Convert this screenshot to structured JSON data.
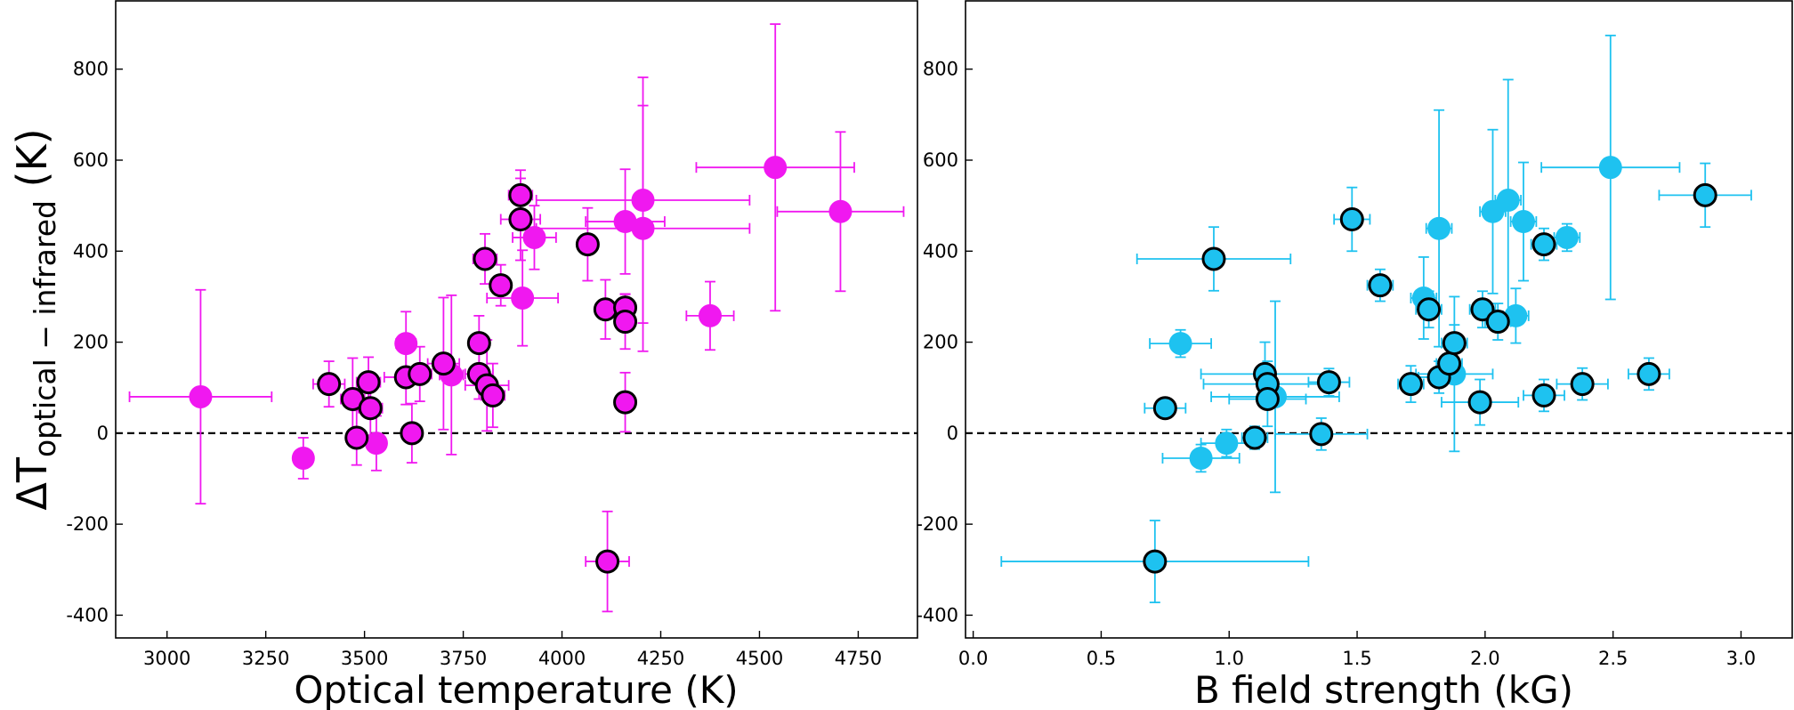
{
  "chart_data": [
    {
      "type": "scatter",
      "title": "",
      "xlabel": "Optical temperature (K)",
      "ylabel_main": "ΔT",
      "ylabel_sub": "optical − infrared",
      "ylabel_unit": " (K)",
      "xlim": [
        2870,
        4900
      ],
      "ylim": [
        -450,
        950
      ],
      "xticks": [
        3000,
        3250,
        3500,
        3750,
        4000,
        4250,
        4500,
        4750
      ],
      "yticks": [
        -400,
        -200,
        0,
        200,
        400,
        600,
        800
      ],
      "reference_line": 0,
      "color": "#f018f0",
      "points": [
        {
          "x": 3085,
          "y": 80,
          "xerr": 180,
          "yerr": 235,
          "outlined": false
        },
        {
          "x": 3345,
          "y": -55,
          "xerr": 15,
          "yerr": 45,
          "outlined": false
        },
        {
          "x": 3410,
          "y": 108,
          "xerr": 40,
          "yerr": 50,
          "outlined": true
        },
        {
          "x": 3470,
          "y": 75,
          "xerr": 30,
          "yerr": 90,
          "outlined": true
        },
        {
          "x": 3480,
          "y": -10,
          "xerr": 25,
          "yerr": 60,
          "outlined": true
        },
        {
          "x": 3510,
          "y": 112,
          "xerr": 30,
          "yerr": 55,
          "outlined": true
        },
        {
          "x": 3515,
          "y": 55,
          "xerr": 30,
          "yerr": 60,
          "outlined": true
        },
        {
          "x": 3530,
          "y": -22,
          "xerr": 15,
          "yerr": 60,
          "outlined": false
        },
        {
          "x": 3605,
          "y": 197,
          "xerr": 25,
          "yerr": 70,
          "outlined": false
        },
        {
          "x": 3605,
          "y": 123,
          "xerr": 55,
          "yerr": 60,
          "outlined": true
        },
        {
          "x": 3620,
          "y": 0,
          "xerr": 25,
          "yerr": 65,
          "outlined": true
        },
        {
          "x": 3640,
          "y": 130,
          "xerr": 30,
          "yerr": 60,
          "outlined": true
        },
        {
          "x": 3700,
          "y": 153,
          "xerr": 40,
          "yerr": 145,
          "outlined": true
        },
        {
          "x": 3720,
          "y": 128,
          "xerr": 30,
          "yerr": 175,
          "outlined": false
        },
        {
          "x": 3790,
          "y": 198,
          "xerr": 20,
          "yerr": 60,
          "outlined": true
        },
        {
          "x": 3790,
          "y": 130,
          "xerr": 35,
          "yerr": 55,
          "outlined": true
        },
        {
          "x": 3805,
          "y": 383,
          "xerr": 30,
          "yerr": 55,
          "outlined": true
        },
        {
          "x": 3810,
          "y": 105,
          "xerr": 55,
          "yerr": 100,
          "outlined": true
        },
        {
          "x": 3825,
          "y": 83,
          "xerr": 30,
          "yerr": 70,
          "outlined": true
        },
        {
          "x": 3845,
          "y": 325,
          "xerr": 25,
          "yerr": 45,
          "outlined": true
        },
        {
          "x": 3895,
          "y": 523,
          "xerr": 30,
          "yerr": 55,
          "outlined": true
        },
        {
          "x": 3895,
          "y": 470,
          "xerr": 50,
          "yerr": 90,
          "outlined": true
        },
        {
          "x": 3900,
          "y": 297,
          "xerr": 90,
          "yerr": 105,
          "outlined": false
        },
        {
          "x": 3930,
          "y": 430,
          "xerr": 55,
          "yerr": 70,
          "outlined": false
        },
        {
          "x": 4065,
          "y": 415,
          "xerr": 20,
          "yerr": 80,
          "outlined": true
        },
        {
          "x": 4110,
          "y": 272,
          "xerr": 25,
          "yerr": 65,
          "outlined": true
        },
        {
          "x": 4115,
          "y": -282,
          "xerr": 55,
          "yerr": 110,
          "outlined": true
        },
        {
          "x": 4160,
          "y": 465,
          "xerr": 100,
          "yerr": 115,
          "outlined": false
        },
        {
          "x": 4160,
          "y": 276,
          "xerr": 20,
          "yerr": 30,
          "outlined": true
        },
        {
          "x": 4160,
          "y": 245,
          "xerr": 20,
          "yerr": 60,
          "outlined": true
        },
        {
          "x": 4160,
          "y": 68,
          "xerr": 20,
          "yerr": 65,
          "outlined": true
        },
        {
          "x": 4205,
          "y": 512,
          "xerr": 270,
          "yerr": 270,
          "outlined": false
        },
        {
          "x": 4205,
          "y": 450,
          "xerr": 270,
          "yerr": 270,
          "outlined": false
        },
        {
          "x": 4375,
          "y": 258,
          "xerr": 60,
          "yerr": 75,
          "outlined": false
        },
        {
          "x": 4540,
          "y": 584,
          "xerr": 200,
          "yerr": 315,
          "outlined": false
        },
        {
          "x": 4705,
          "y": 487,
          "xerr": 160,
          "yerr": 175,
          "outlined": false
        }
      ]
    },
    {
      "type": "scatter",
      "title": "",
      "xlabel": "B field strength (kG)",
      "ylabel": "",
      "xlim": [
        -0.03,
        3.2
      ],
      "ylim": [
        -450,
        950
      ],
      "xticks": [
        "0.0",
        "0.5",
        "1.0",
        "1.5",
        "2.0",
        "2.5",
        "3.0"
      ],
      "yticks": [
        -400,
        -200,
        0,
        200,
        400,
        600,
        800
      ],
      "reference_line": 0,
      "color": "#1ec2f0",
      "points": [
        {
          "x": 0.71,
          "y": -282,
          "xerr": 0.6,
          "yerr": 90,
          "outlined": true
        },
        {
          "x": 0.75,
          "y": 55,
          "xerr": 0.08,
          "yerr": 20,
          "outlined": true
        },
        {
          "x": 0.81,
          "y": 197,
          "xerr": 0.12,
          "yerr": 30,
          "outlined": false
        },
        {
          "x": 0.89,
          "y": -55,
          "xerr": 0.15,
          "yerr": 30,
          "outlined": false
        },
        {
          "x": 0.94,
          "y": 383,
          "xerr": 0.3,
          "yerr": 70,
          "outlined": true
        },
        {
          "x": 0.99,
          "y": -22,
          "xerr": 0.1,
          "yerr": 30,
          "outlined": false
        },
        {
          "x": 1.1,
          "y": -10,
          "xerr": 0.05,
          "yerr": 25,
          "outlined": true
        },
        {
          "x": 1.14,
          "y": 130,
          "xerr": 0.25,
          "yerr": 70,
          "outlined": true
        },
        {
          "x": 1.15,
          "y": 108,
          "xerr": 0.25,
          "yerr": 50,
          "outlined": true
        },
        {
          "x": 1.15,
          "y": 75,
          "xerr": 0.15,
          "yerr": 60,
          "outlined": true
        },
        {
          "x": 1.18,
          "y": 80,
          "xerr": 0.25,
          "yerr": 210,
          "outlined": false
        },
        {
          "x": 1.36,
          "y": -2,
          "xerr": 0.18,
          "yerr": 35,
          "outlined": true
        },
        {
          "x": 1.39,
          "y": 112,
          "xerr": 0.08,
          "yerr": 30,
          "outlined": true
        },
        {
          "x": 1.48,
          "y": 470,
          "xerr": 0.07,
          "yerr": 70,
          "outlined": true
        },
        {
          "x": 1.59,
          "y": 325,
          "xerr": 0.05,
          "yerr": 35,
          "outlined": true
        },
        {
          "x": 1.71,
          "y": 108,
          "xerr": 0.05,
          "yerr": 40,
          "outlined": true
        },
        {
          "x": 1.76,
          "y": 297,
          "xerr": 0.05,
          "yerr": 90,
          "outlined": false
        },
        {
          "x": 1.78,
          "y": 272,
          "xerr": 0.05,
          "yerr": 40,
          "outlined": true
        },
        {
          "x": 1.82,
          "y": 450,
          "xerr": 0.05,
          "yerr": 260,
          "outlined": false
        },
        {
          "x": 1.82,
          "y": 123,
          "xerr": 0.08,
          "yerr": 35,
          "outlined": true
        },
        {
          "x": 1.86,
          "y": 153,
          "xerr": 0.05,
          "yerr": 40,
          "outlined": true
        },
        {
          "x": 1.88,
          "y": 198,
          "xerr": 0.05,
          "yerr": 40,
          "outlined": true
        },
        {
          "x": 1.88,
          "y": 130,
          "xerr": 0.15,
          "yerr": 170,
          "outlined": false
        },
        {
          "x": 1.98,
          "y": 68,
          "xerr": 0.15,
          "yerr": 50,
          "outlined": true
        },
        {
          "x": 1.99,
          "y": 272,
          "xerr": 0.05,
          "yerr": 40,
          "outlined": true
        },
        {
          "x": 2.03,
          "y": 487,
          "xerr": 0.05,
          "yerr": 180,
          "outlined": false
        },
        {
          "x": 2.05,
          "y": 245,
          "xerr": 0.05,
          "yerr": 40,
          "outlined": true
        },
        {
          "x": 2.09,
          "y": 512,
          "xerr": 0.05,
          "yerr": 265,
          "outlined": false
        },
        {
          "x": 2.12,
          "y": 258,
          "xerr": 0.05,
          "yerr": 60,
          "outlined": false
        },
        {
          "x": 2.15,
          "y": 465,
          "xerr": 0.05,
          "yerr": 130,
          "outlined": false
        },
        {
          "x": 2.23,
          "y": 415,
          "xerr": 0.05,
          "yerr": 35,
          "outlined": true
        },
        {
          "x": 2.23,
          "y": 83,
          "xerr": 0.08,
          "yerr": 35,
          "outlined": true
        },
        {
          "x": 2.32,
          "y": 430,
          "xerr": 0.05,
          "yerr": 30,
          "outlined": false
        },
        {
          "x": 2.38,
          "y": 108,
          "xerr": 0.1,
          "yerr": 35,
          "outlined": true
        },
        {
          "x": 2.49,
          "y": 584,
          "xerr": 0.27,
          "yerr": 290,
          "outlined": false
        },
        {
          "x": 2.64,
          "y": 130,
          "xerr": 0.08,
          "yerr": 35,
          "outlined": true
        },
        {
          "x": 2.86,
          "y": 523,
          "xerr": 0.18,
          "yerr": 70,
          "outlined": true
        }
      ]
    }
  ]
}
